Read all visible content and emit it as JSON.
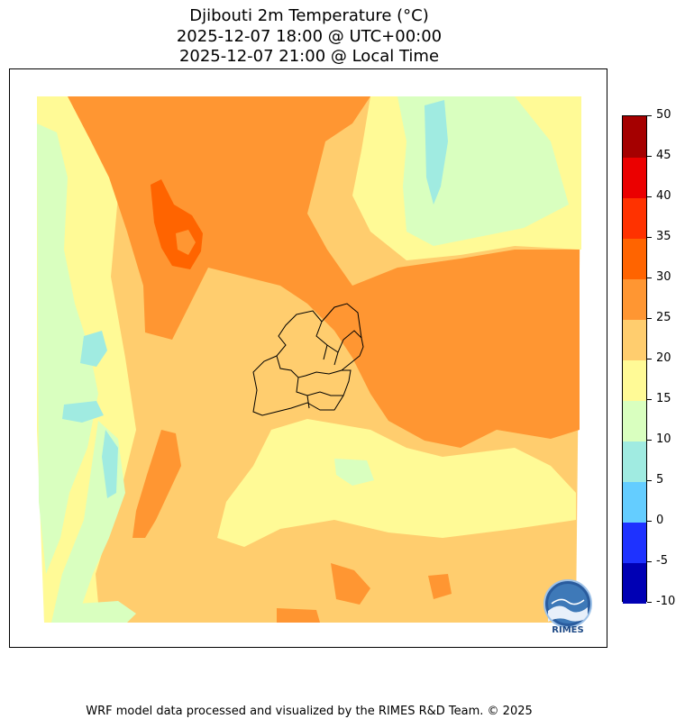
{
  "title": {
    "line1": "Djibouti 2m Temperature (°C)",
    "line2": "2025-12-07 18:00 @ UTC+00:00",
    "line3": "2025-12-07 21:00 @ Local Time"
  },
  "colorbar": {
    "levels": [
      "-10",
      "-5",
      "0",
      "5",
      "10",
      "15",
      "20",
      "25",
      "30",
      "35",
      "40",
      "45",
      "50"
    ],
    "colors": [
      "#0000b4",
      "#1e32ff",
      "#64cdff",
      "#a0ebe1",
      "#d9ffbf",
      "#fffa96",
      "#ffcd6e",
      "#ff9632",
      "#ff6400",
      "#ff3200",
      "#eb0000",
      "#a50000"
    ]
  },
  "logo": {
    "text": "RIMES"
  },
  "footer": "WRF model data processed and visualized by the RIMES R&D Team. © 2025"
}
